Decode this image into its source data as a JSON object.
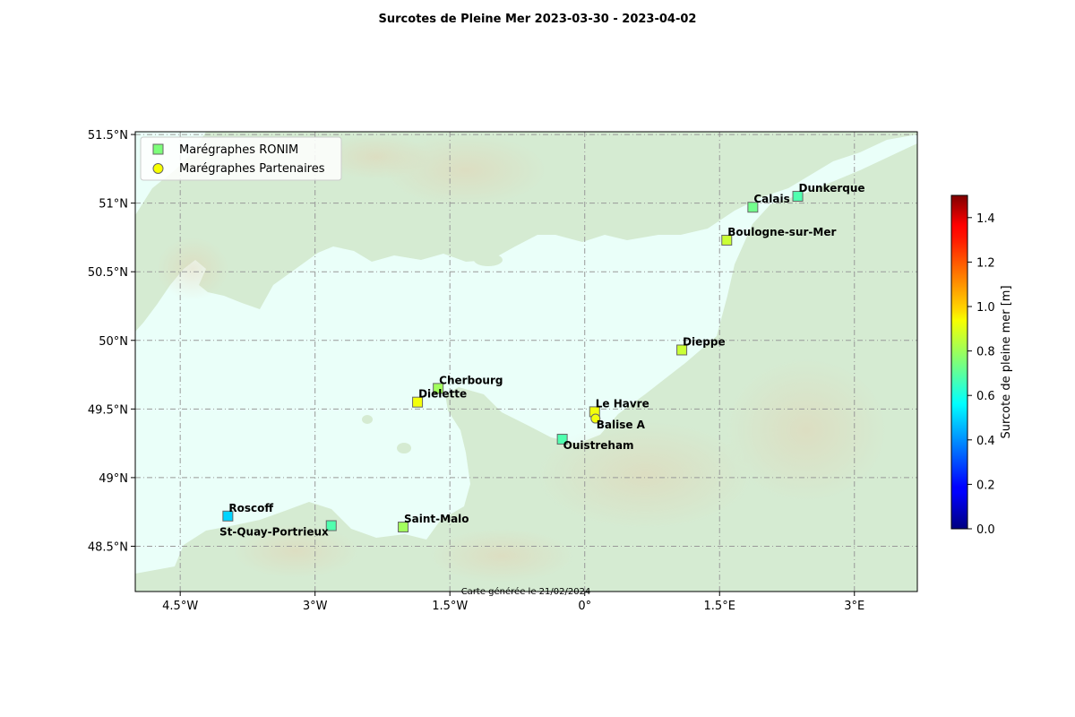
{
  "title": "Surcotes de Pleine Mer 2023-03-30 - 2023-04-02",
  "footer": "Carte générée le 21/02/2024",
  "legend": {
    "placement": "top-left",
    "items": [
      {
        "label": "Marégraphes RONIM",
        "marker": "square"
      },
      {
        "label": "Marégraphes Partenaires",
        "marker": "circle"
      }
    ]
  },
  "map": {
    "lon_range": [
      -5.0,
      3.7
    ],
    "lat_range": [
      48.17,
      51.52
    ],
    "lon_ticks": [
      {
        "value": -4.5,
        "label": "4.5°W"
      },
      {
        "value": -3.0,
        "label": "3°W"
      },
      {
        "value": -1.5,
        "label": "1.5°W"
      },
      {
        "value": 0.0,
        "label": "0°"
      },
      {
        "value": 1.5,
        "label": "1.5°E"
      },
      {
        "value": 3.0,
        "label": "3°E"
      }
    ],
    "lat_ticks": [
      {
        "value": 51.5,
        "label": "51.5°N"
      },
      {
        "value": 51.0,
        "label": "51°N"
      },
      {
        "value": 50.5,
        "label": "50.5°N"
      },
      {
        "value": 50.0,
        "label": "50°N"
      },
      {
        "value": 49.5,
        "label": "49.5°N"
      },
      {
        "value": 49.0,
        "label": "49°N"
      },
      {
        "value": 48.5,
        "label": "48.5°N"
      }
    ],
    "grid": true
  },
  "colorbar": {
    "label": "Surcote de pleine mer [m]",
    "range": [
      0.0,
      1.5
    ],
    "ticks": [
      {
        "value": 0.0,
        "label": "0.0"
      },
      {
        "value": 0.2,
        "label": "0.2"
      },
      {
        "value": 0.4,
        "label": "0.4"
      },
      {
        "value": 0.6,
        "label": "0.6"
      },
      {
        "value": 0.8,
        "label": "0.8"
      },
      {
        "value": 1.0,
        "label": "1.0"
      },
      {
        "value": 1.2,
        "label": "1.2"
      },
      {
        "value": 1.4,
        "label": "1.4"
      }
    ],
    "colormap": "jet"
  },
  "chart_data": {
    "type": "scatter",
    "title": "Surcotes de Pleine Mer 2023-03-30 - 2023-04-02",
    "xlabel": "",
    "ylabel": "",
    "value_label": "Surcote de pleine mer [m]",
    "series": [
      {
        "name": "Marégraphes RONIM",
        "points": [
          {
            "station": "Dunkerque",
            "lon": 2.37,
            "lat": 51.05,
            "value": 0.68,
            "label_side": "above-right"
          },
          {
            "station": "Calais",
            "lon": 1.87,
            "lat": 50.97,
            "value": 0.73,
            "label_side": "above-right"
          },
          {
            "station": "Boulogne-sur-Mer",
            "lon": 1.58,
            "lat": 50.73,
            "value": 0.86,
            "label_side": "above-right"
          },
          {
            "station": "Dieppe",
            "lon": 1.08,
            "lat": 49.93,
            "value": 0.86,
            "label_side": "above-right"
          },
          {
            "station": "Cherbourg",
            "lon": -1.63,
            "lat": 49.65,
            "value": 0.8,
            "label_side": "above-right"
          },
          {
            "station": "Dielette",
            "lon": -1.86,
            "lat": 49.55,
            "value": 0.92,
            "label_side": "above-right"
          },
          {
            "station": "Le Havre",
            "lon": 0.11,
            "lat": 49.48,
            "value": 0.92,
            "label_side": "above-right"
          },
          {
            "station": "Ouistreham",
            "lon": -0.25,
            "lat": 49.28,
            "value": 0.68,
            "label_side": "below-right"
          },
          {
            "station": "Roscoff",
            "lon": -3.97,
            "lat": 48.72,
            "value": 0.5,
            "label_side": "above-right"
          },
          {
            "station": "St-Quay-Portrieux",
            "lon": -2.82,
            "lat": 48.65,
            "value": 0.68,
            "label_side": "below-left"
          },
          {
            "station": "Saint-Malo",
            "lon": -2.02,
            "lat": 48.64,
            "value": 0.8,
            "label_side": "above-right"
          }
        ]
      },
      {
        "name": "Marégraphes Partenaires",
        "points": [
          {
            "station": "Balise A",
            "lon": 0.12,
            "lat": 49.43,
            "value": 0.92,
            "label_side": "below-right"
          }
        ]
      }
    ]
  }
}
